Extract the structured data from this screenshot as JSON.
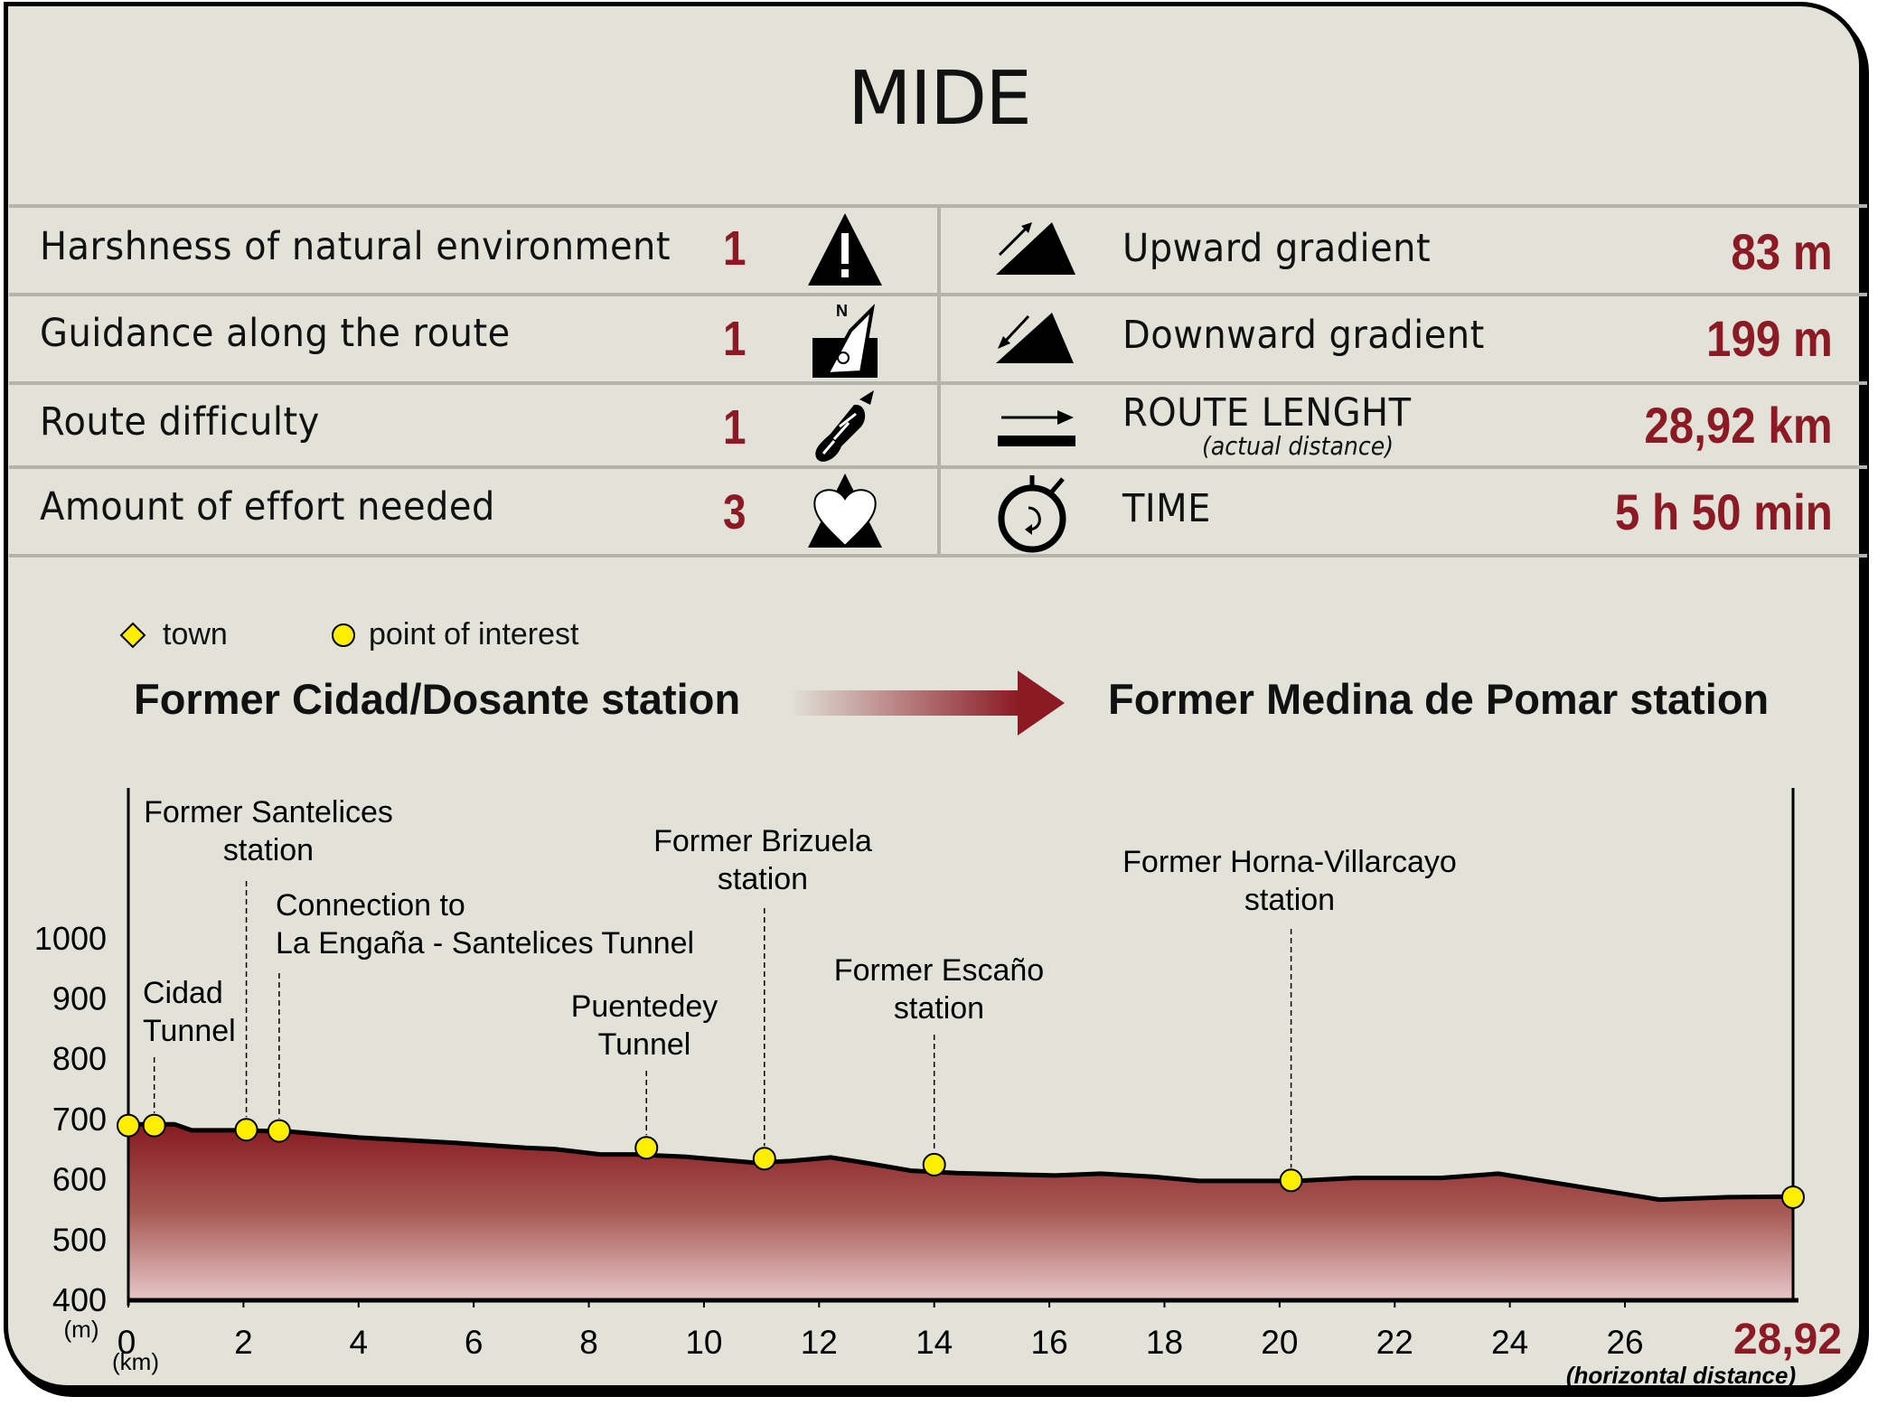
{
  "title": "MIDE",
  "colors": {
    "background": "#e2e2d9",
    "accent": "#8b1a24",
    "marker": "#ffee00",
    "divider": "#b4b4ac"
  },
  "mide_rows": [
    {
      "label": "Harshness of natural environment",
      "value": "1",
      "icon": "mountain-warning-icon"
    },
    {
      "label": "Guidance along the route",
      "value": "1",
      "icon": "compass-icon"
    },
    {
      "label": "Route difficulty",
      "value": "1",
      "icon": "footprint-icon"
    },
    {
      "label": "Amount of effort needed",
      "value": "3",
      "icon": "heart-mountain-icon"
    }
  ],
  "stats": [
    {
      "label": "Upward gradient",
      "value": "83 m",
      "icon": "upward-gradient-icon"
    },
    {
      "label": "Downward gradient",
      "value": "199 m",
      "icon": "downward-gradient-icon"
    },
    {
      "label": "ROUTE LENGHT",
      "sublabel": "(actual distance)",
      "value": "28,92 km",
      "icon": "route-length-icon"
    },
    {
      "label": "TIME",
      "value": "5 h 50 min",
      "icon": "stopwatch-icon"
    }
  ],
  "legend": {
    "town": "town",
    "poi": "point of interest"
  },
  "route": {
    "from": "Former Cidad/Dosante station",
    "to": "Former Medina de Pomar station"
  },
  "chart_data": {
    "type": "area",
    "xlabel": "(km)",
    "ylabel": "(m)",
    "x_end_label": "28,92",
    "x_end_note": "(horizontal distance)",
    "xlim": [
      0,
      28.92
    ],
    "ylim": [
      400,
      1100
    ],
    "x_ticks": [
      "0",
      "2",
      "4",
      "6",
      "8",
      "10",
      "12",
      "14",
      "16",
      "18",
      "20",
      "22",
      "24",
      "26"
    ],
    "y_ticks": [
      "400",
      "500",
      "600",
      "700",
      "800",
      "900",
      "1000"
    ],
    "profile": [
      [
        0,
        692
      ],
      [
        0.8,
        692
      ],
      [
        1.1,
        682
      ],
      [
        1.9,
        682
      ],
      [
        2.8,
        680
      ],
      [
        4.0,
        670
      ],
      [
        5.7,
        661
      ],
      [
        6.9,
        653
      ],
      [
        7.4,
        651
      ],
      [
        8.2,
        642
      ],
      [
        8.8,
        642
      ],
      [
        9.7,
        638
      ],
      [
        10.9,
        628
      ],
      [
        11.5,
        631
      ],
      [
        12.2,
        637
      ],
      [
        12.8,
        628
      ],
      [
        13.6,
        615
      ],
      [
        14.4,
        611
      ],
      [
        16.1,
        607
      ],
      [
        16.9,
        610
      ],
      [
        17.8,
        605
      ],
      [
        18.6,
        598
      ],
      [
        20.3,
        598
      ],
      [
        21.3,
        603
      ],
      [
        22.8,
        603
      ],
      [
        23.8,
        610
      ],
      [
        25.3,
        587
      ],
      [
        26.6,
        567
      ],
      [
        27.8,
        571
      ],
      [
        28.92,
        572
      ]
    ],
    "points": [
      {
        "km": 0,
        "elev": 690,
        "label": ""
      },
      {
        "km": 0.45,
        "elev": 690,
        "label": "Cidad\nTunnel"
      },
      {
        "km": 2.05,
        "elev": 683,
        "label": "Former Santelices\nstation"
      },
      {
        "km": 2.62,
        "elev": 681,
        "label": "Connection to\nLa Engaña - Santelices Tunnel"
      },
      {
        "km": 9.0,
        "elev": 653,
        "label": "Puentedey\nTunnel"
      },
      {
        "km": 11.05,
        "elev": 635,
        "label": "Former Brizuela\nstation"
      },
      {
        "km": 14.0,
        "elev": 625,
        "label": "Former Escaño\nstation"
      },
      {
        "km": 20.2,
        "elev": 599,
        "label": "Former Horna-Villarcayo\nstation"
      },
      {
        "km": 28.92,
        "elev": 571,
        "label": ""
      }
    ]
  }
}
